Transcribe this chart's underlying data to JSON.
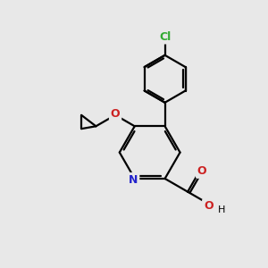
{
  "bg_color": "#e8e8e8",
  "bond_color": "#000000",
  "n_color": "#2222cc",
  "o_color": "#cc2222",
  "cl_color": "#33aa33",
  "line_width": 1.6,
  "figsize": [
    3.0,
    3.0
  ],
  "dpi": 100,
  "xlim": [
    0,
    10
  ],
  "ylim": [
    0,
    10
  ]
}
